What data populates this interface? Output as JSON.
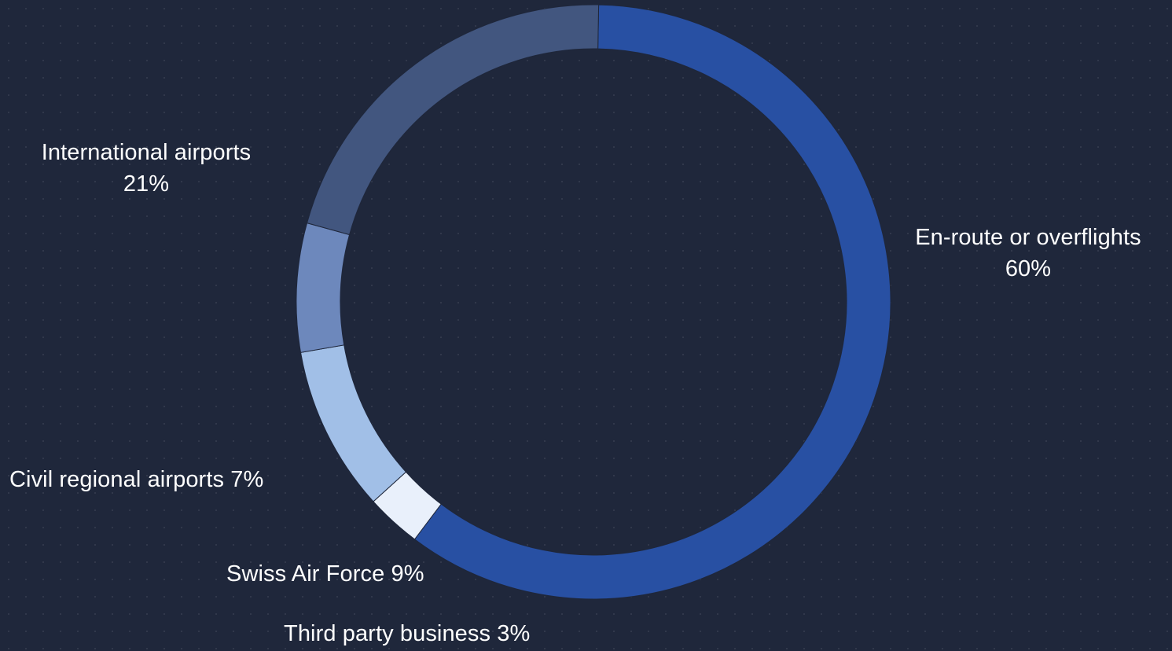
{
  "chart_data": {
    "type": "pie",
    "variant": "donut",
    "start_angle_deg": 1,
    "direction": "clockwise",
    "slices": [
      {
        "name": "En-route or overflights",
        "label": "En-route or overflights",
        "value_label": "60%",
        "value": 60,
        "color": "#2850a3"
      },
      {
        "name": "Third party business",
        "label": "Third party business",
        "value_label": "3%",
        "value": 3,
        "color": "#e9f0fb"
      },
      {
        "name": "Swiss Air Force",
        "label": "Swiss Air Force",
        "value_label": "9%",
        "value": 9,
        "color": "#a1bfe7"
      },
      {
        "name": "Civil regional airports",
        "label": "Civil regional airports",
        "value_label": "7%",
        "value": 7,
        "color": "#6d88bc"
      },
      {
        "name": "International airports",
        "label": "International airports",
        "value_label": "21%",
        "value": 21,
        "color": "#42567f"
      }
    ]
  }
}
